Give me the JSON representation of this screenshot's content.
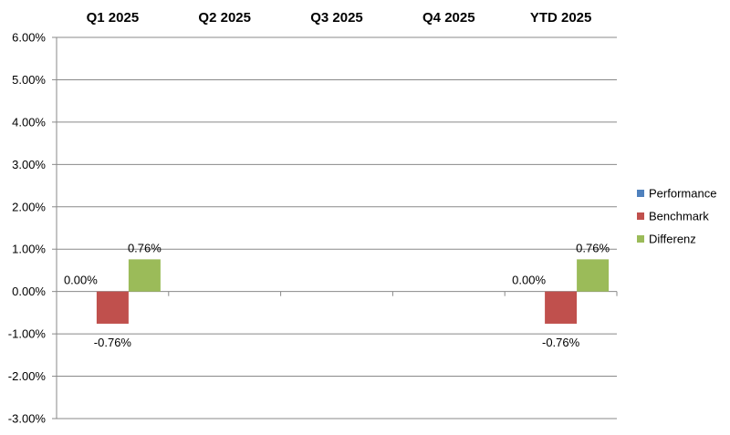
{
  "chart_data": {
    "type": "bar",
    "categories": [
      "Q1 2025",
      "Q2 2025",
      "Q3 2025",
      "Q4 2025",
      "YTD 2025"
    ],
    "series": [
      {
        "name": "Performance",
        "color": "#4f81bd",
        "values": [
          0.0,
          null,
          null,
          null,
          0.0
        ]
      },
      {
        "name": "Benchmark",
        "color": "#c0504d",
        "values": [
          -0.76,
          null,
          null,
          null,
          -0.76
        ]
      },
      {
        "name": "Differenz",
        "color": "#9bbb59",
        "values": [
          0.76,
          null,
          null,
          null,
          0.76
        ]
      }
    ],
    "data_labels": [
      [
        "0.00%",
        "",
        "",
        "",
        "0.00%"
      ],
      [
        "-0.76%",
        "",
        "",
        "",
        "-0.76%"
      ],
      [
        "0.76%",
        "",
        "",
        "",
        "0.76%"
      ]
    ],
    "ylim": [
      -3.0,
      6.0
    ],
    "y_ticks": [
      6.0,
      5.0,
      4.0,
      3.0,
      2.0,
      1.0,
      0.0,
      -1.0,
      -2.0,
      -3.0
    ],
    "y_tick_labels": [
      "6.00%",
      "5.00%",
      "4.00%",
      "3.00%",
      "2.00%",
      "1.00%",
      "0.00%",
      "-1.00%",
      "-2.00%",
      "-3.00%"
    ],
    "y_unit": "%",
    "grid": true,
    "category_labels_position": "top",
    "legend_position": "right",
    "title": "",
    "xlabel": "",
    "ylabel": ""
  }
}
